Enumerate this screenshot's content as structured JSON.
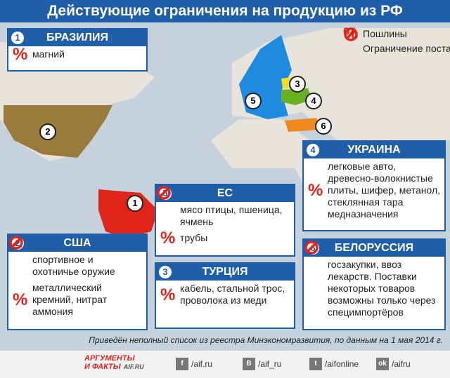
{
  "title": "Действующие ограничения на продукцию из РФ",
  "legend": {
    "duty_symbol": "%",
    "duty": "Пошлины",
    "ban": "Ограничение поставок"
  },
  "countries": [
    {
      "number": "1",
      "name": "БРАЗИЛИЯ",
      "items": [
        {
          "kind": "duty",
          "text": "магний"
        }
      ]
    },
    {
      "number": "2",
      "name": "США",
      "items": [
        {
          "kind": "ban",
          "text": "спортивное и охотничье оружие"
        },
        {
          "kind": "duty",
          "text": "металлический кремний, нитрат аммония"
        }
      ]
    },
    {
      "number": "5",
      "name": "ЕС",
      "items": [
        {
          "kind": "ban",
          "text": "мясо птицы, пшеница, ячмень"
        },
        {
          "kind": "duty",
          "text": "трубы"
        }
      ]
    },
    {
      "number": "3",
      "name": "ТУРЦИЯ",
      "items": [
        {
          "kind": "duty",
          "text": "кабель, стальной трос, проволока из меди"
        }
      ]
    },
    {
      "number": "4",
      "name": "УКРАИНА",
      "items": [
        {
          "kind": "duty",
          "text": "легковые авто, древесно-волокнистые плиты, шифер, метанол, стеклянная тара медназначения"
        }
      ]
    },
    {
      "number": "6",
      "name": "БЕЛОРУССИЯ",
      "items": [
        {
          "kind": "ban",
          "text": "госзакупки, ввоз лекарств. Поставки некоторых товаров возможны только через специмпортёров"
        }
      ]
    }
  ],
  "footnote": "Приведён неполный список из реестра Минэкономразвития, по данным на 1 мая 2014 г.",
  "logo": {
    "line1": "АРГУМЕНТЫ",
    "line2": "И ФАКТЫ",
    "site": "AIF.RU"
  },
  "social": [
    {
      "icon": "f",
      "handle": "/aif.ru"
    },
    {
      "icon": "В",
      "handle": "/aif_ru"
    },
    {
      "icon": "t",
      "handle": "/aifonline"
    },
    {
      "icon": "ok",
      "handle": "/aifru"
    }
  ]
}
